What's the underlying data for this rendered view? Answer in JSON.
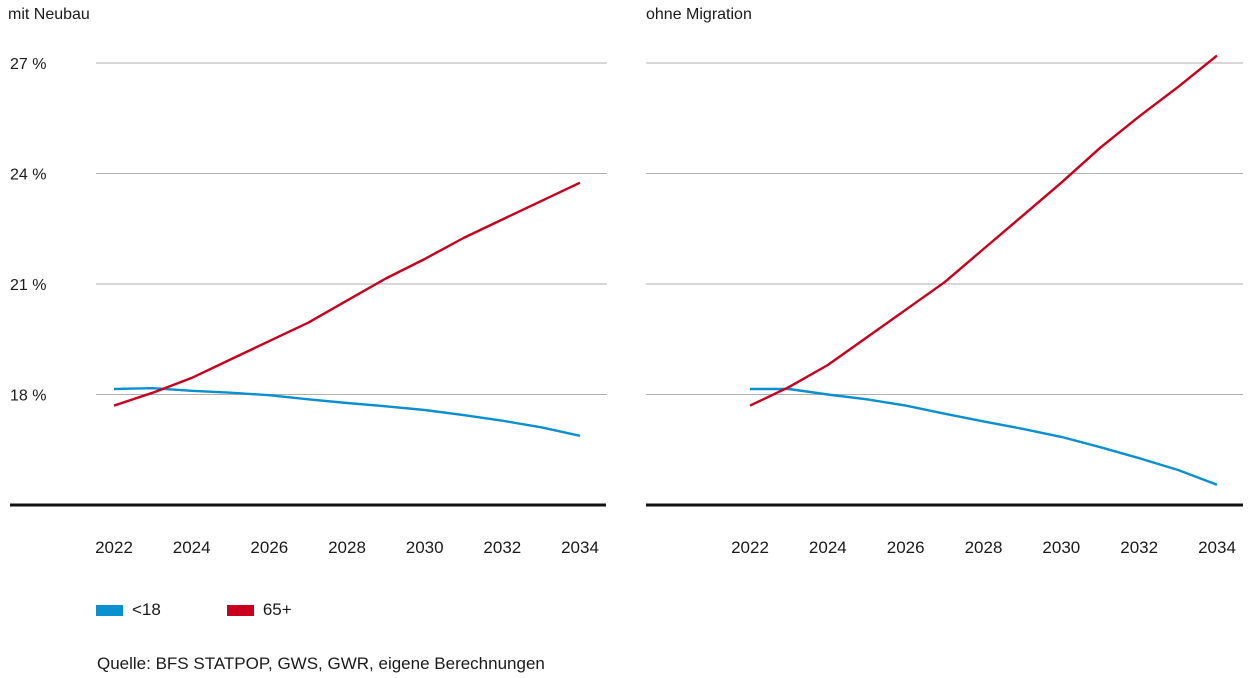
{
  "chart_data": [
    {
      "type": "line",
      "title": "mit Neubau",
      "x": [
        2022,
        2023,
        2024,
        2025,
        2026,
        2027,
        2028,
        2029,
        2030,
        2031,
        2032,
        2033,
        2034
      ],
      "x_ticks": [
        "2022",
        "2024",
        "2026",
        "2028",
        "2030",
        "2032",
        "2034"
      ],
      "y_ticks": [
        "18 %",
        "21 %",
        "24 %",
        "27 %"
      ],
      "ylim": [
        15,
        27
      ],
      "grid": true,
      "series": [
        {
          "name": "<18",
          "color": "#0a8fd0",
          "values": [
            18.15,
            18.17,
            18.1,
            18.05,
            17.98,
            17.87,
            17.77,
            17.68,
            17.58,
            17.44,
            17.29,
            17.11,
            16.88
          ]
        },
        {
          "name": "65+",
          "color": "#c8001e",
          "values": [
            17.7,
            18.05,
            18.45,
            18.95,
            19.45,
            19.95,
            20.55,
            21.15,
            21.68,
            22.25,
            22.75,
            23.25,
            23.75
          ]
        }
      ]
    },
    {
      "type": "line",
      "title": "ohne Migration",
      "x": [
        2022,
        2023,
        2024,
        2025,
        2026,
        2027,
        2028,
        2029,
        2030,
        2031,
        2032,
        2033,
        2034
      ],
      "x_ticks": [
        "2022",
        "2024",
        "2026",
        "2028",
        "2030",
        "2032",
        "2034"
      ],
      "y_ticks": [
        "18 %",
        "21 %",
        "24 %",
        "27 %"
      ],
      "ylim": [
        15,
        27
      ],
      "grid": true,
      "series": [
        {
          "name": "<18",
          "color": "#0a8fd0",
          "values": [
            18.15,
            18.15,
            18.0,
            17.87,
            17.7,
            17.48,
            17.27,
            17.07,
            16.85,
            16.57,
            16.27,
            15.95,
            15.55
          ]
        },
        {
          "name": "65+",
          "color": "#c8001e",
          "values": [
            17.7,
            18.2,
            18.8,
            19.55,
            20.3,
            21.05,
            21.95,
            22.85,
            23.75,
            24.7,
            25.55,
            26.35,
            27.2
          ]
        }
      ]
    }
  ],
  "legend": [
    {
      "label": "<18",
      "color": "#0a8fd0"
    },
    {
      "label": "65+",
      "color": "#c8001e"
    }
  ],
  "source": "Quelle: BFS STATPOP, GWS, GWR, eigene Berechnungen"
}
